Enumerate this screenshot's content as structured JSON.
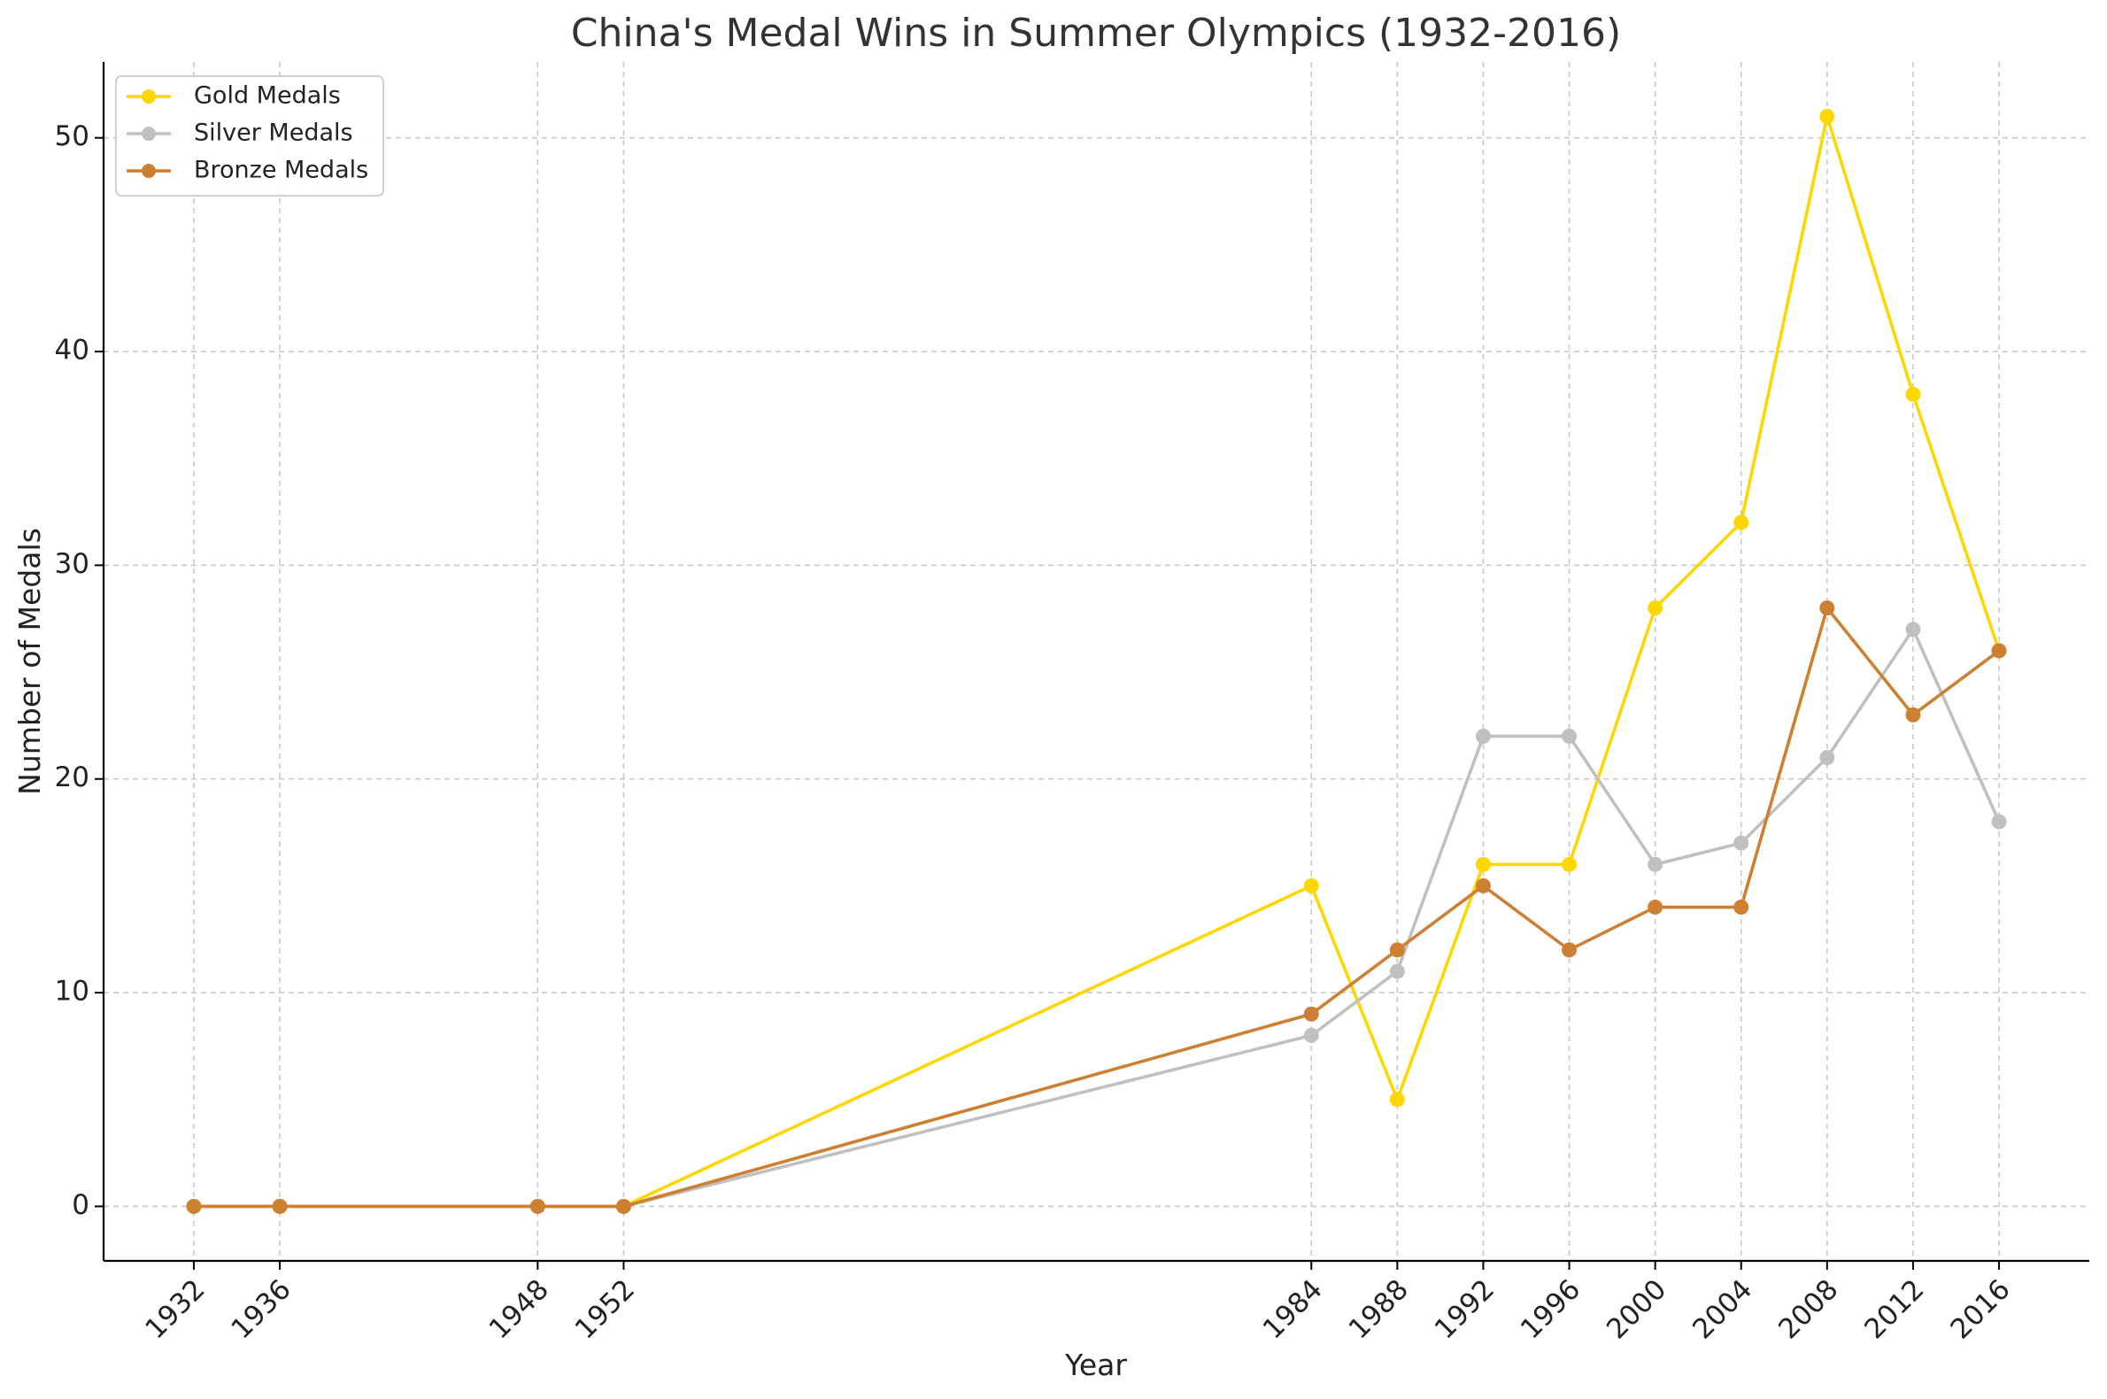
{
  "chart_data": {
    "type": "line",
    "title": "China's Medal Wins in Summer Olympics (1932-2016)",
    "xlabel": "Year",
    "ylabel": "Number of Medals",
    "x": [
      1932,
      1936,
      1948,
      1952,
      1984,
      1988,
      1992,
      1996,
      2000,
      2004,
      2008,
      2012,
      2016
    ],
    "x_tick_labels": [
      "1932",
      "1936",
      "1948",
      "1952",
      "1984",
      "1988",
      "1992",
      "1996",
      "2000",
      "2004",
      "2008",
      "2012",
      "2016"
    ],
    "xlim": [
      1927.8,
      2020.2
    ],
    "ylim": [
      -2.55,
      53.55
    ],
    "y_ticks": [
      0,
      10,
      20,
      30,
      40,
      50
    ],
    "y_tick_labels": [
      "0",
      "10",
      "20",
      "30",
      "40",
      "50"
    ],
    "grid": true,
    "legend_position": "top-left",
    "series": [
      {
        "name": "Gold Medals",
        "color": "#FFD700",
        "values": [
          0,
          0,
          0,
          0,
          15,
          5,
          16,
          16,
          28,
          32,
          51,
          38,
          26
        ]
      },
      {
        "name": "Silver Medals",
        "color": "#C0C0C0",
        "values": [
          0,
          0,
          0,
          0,
          8,
          11,
          22,
          22,
          16,
          17,
          21,
          27,
          18
        ]
      },
      {
        "name": "Bronze Medals",
        "color": "#CD7F32",
        "values": [
          0,
          0,
          0,
          0,
          9,
          12,
          15,
          12,
          14,
          14,
          28,
          23,
          26
        ]
      }
    ]
  }
}
